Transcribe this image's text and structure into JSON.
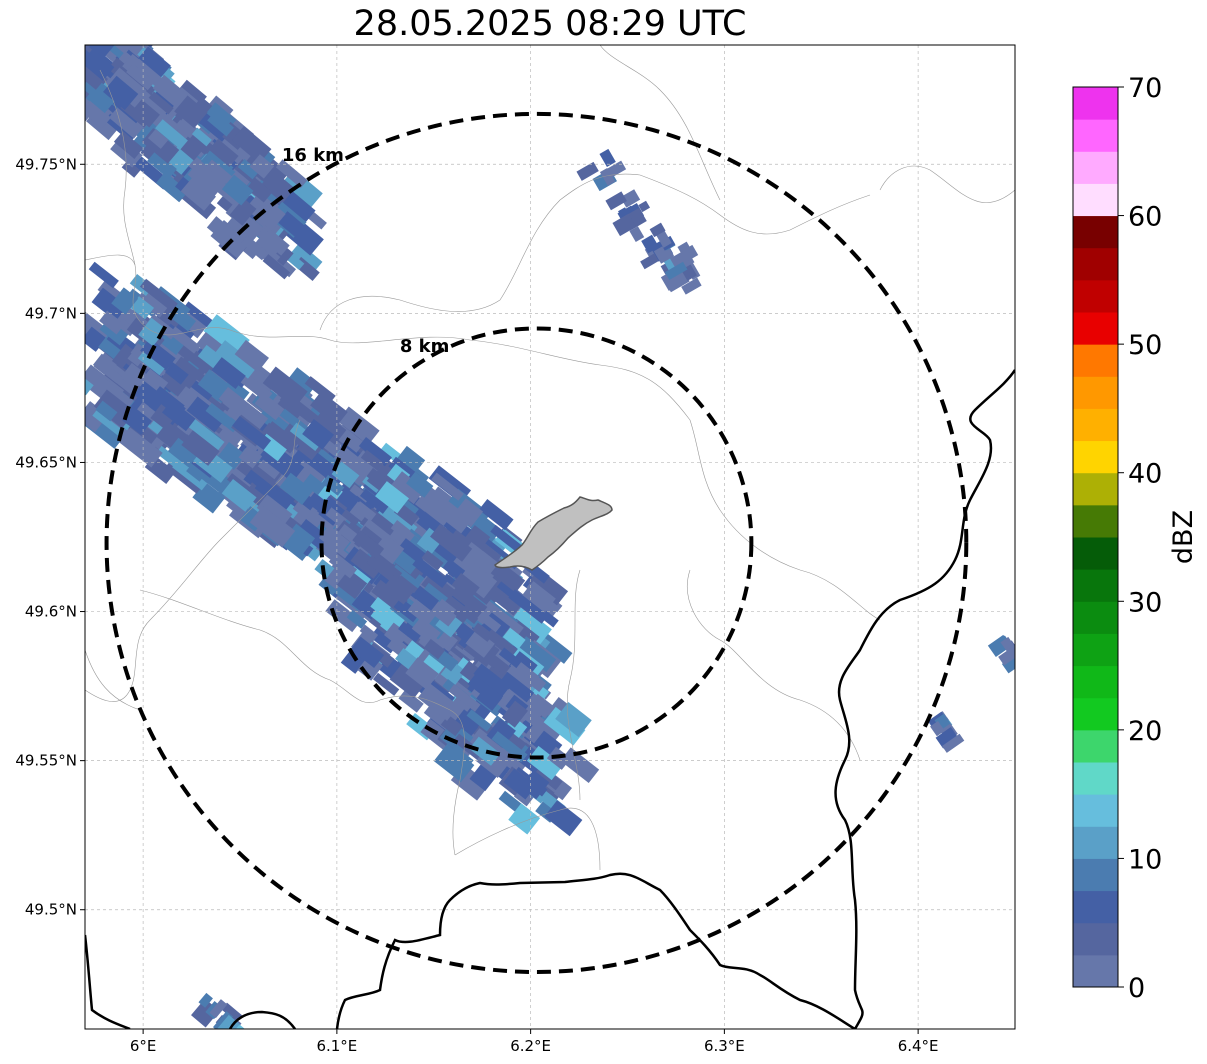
{
  "title": "28.05.2025 08:29 UTC",
  "map": {
    "lon_range": [
      5.97,
      6.45
    ],
    "lat_range": [
      49.46,
      49.79
    ],
    "gridlines": true,
    "colors": {
      "border": "#000000",
      "admin": "#999999",
      "grid": "#bbbbbb",
      "city_fill": "#c0c0c0",
      "city_edge": "#555555",
      "rings": "#000000"
    }
  },
  "x_ticks": [
    {
      "value": 6.0,
      "label": "6°E"
    },
    {
      "value": 6.1,
      "label": "6.1°E"
    },
    {
      "value": 6.2,
      "label": "6.2°E"
    },
    {
      "value": 6.3,
      "label": "6.3°E"
    },
    {
      "value": 6.4,
      "label": "6.4°E"
    }
  ],
  "y_ticks": [
    {
      "value": 49.75,
      "label": "49.75°N"
    },
    {
      "value": 49.7,
      "label": "49.7°N"
    },
    {
      "value": 49.65,
      "label": "49.65°N"
    },
    {
      "value": 49.6,
      "label": "49.6°N"
    },
    {
      "value": 49.55,
      "label": "49.55°N"
    },
    {
      "value": 49.5,
      "label": "49.5°N"
    }
  ],
  "range_rings": [
    {
      "label": "8 km",
      "radius_km": 8
    },
    {
      "label": "16 km",
      "radius_km": 16
    }
  ],
  "radar_site": {
    "lon": 6.203,
    "lat": 49.623
  },
  "colorbar": {
    "label": "dBZ",
    "min": 0,
    "max": 70,
    "step": 2.5,
    "ticks": [
      {
        "value": 0,
        "label": "0"
      },
      {
        "value": 10,
        "label": "10"
      },
      {
        "value": 20,
        "label": "20"
      },
      {
        "value": 30,
        "label": "30"
      },
      {
        "value": 40,
        "label": "40"
      },
      {
        "value": 50,
        "label": "50"
      },
      {
        "value": 60,
        "label": "60"
      },
      {
        "value": 70,
        "label": "70"
      }
    ],
    "colors": [
      "#6677aa",
      "#55669f",
      "#4460a5",
      "#4b7cb0",
      "#5aa0c8",
      "#66bedd",
      "#60d8c8",
      "#3dd66c",
      "#12c920",
      "#10b818",
      "#0ea214",
      "#0b8c10",
      "#08760c",
      "#055c08",
      "#467a05",
      "#adb005",
      "#ffd400",
      "#ffb000",
      "#ff9800",
      "#ff7800",
      "#e80000",
      "#c00000",
      "#a00000",
      "#780000",
      "#ffddff",
      "#ffaaff",
      "#ff66ff",
      "#ee33ee"
    ]
  }
}
